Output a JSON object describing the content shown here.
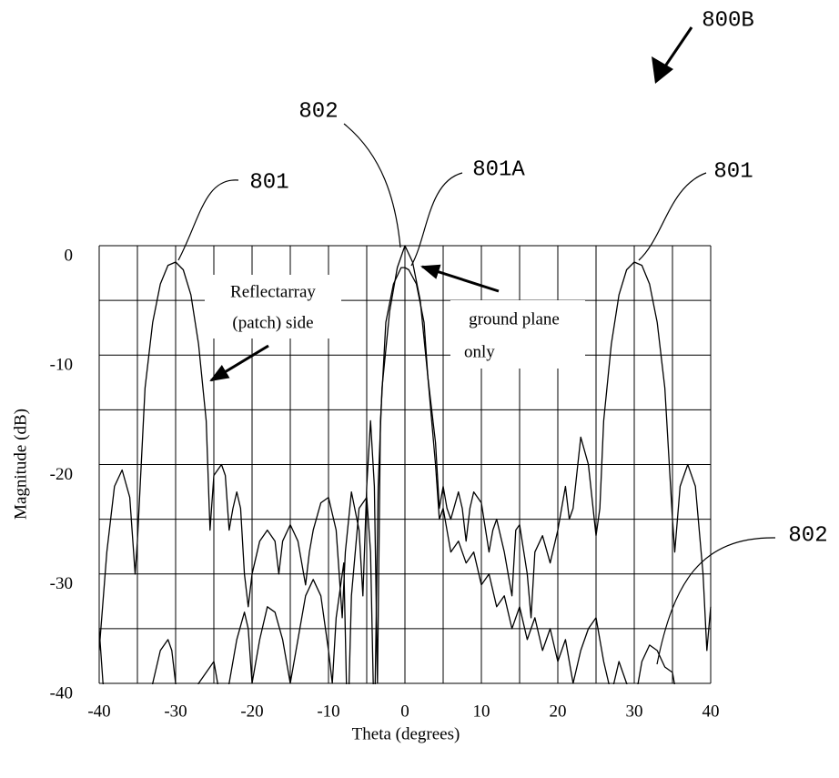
{
  "chart_data": {
    "type": "line",
    "xlabel": "Theta (degrees)",
    "ylabel": "Magnitude (dB)",
    "xlim": [
      -40,
      40
    ],
    "ylim": [
      -40,
      0
    ],
    "xticks": [
      -40,
      -30,
      -20,
      -10,
      0,
      10,
      20,
      30,
      40
    ],
    "yticks": [
      0,
      -10,
      -20,
      -30,
      -40
    ],
    "xminor": [
      -35,
      -25,
      -15,
      -5,
      5,
      15,
      25,
      35
    ],
    "yminor": [
      -5,
      -15,
      -25,
      -35
    ],
    "grid": true,
    "annotations": [
      "800B",
      "802",
      "801",
      "801A",
      "801",
      "802",
      "Reflectarray",
      "(patch) side",
      "ground plane",
      "only"
    ],
    "series": [
      {
        "color": "#000000",
        "x": [
          -40,
          -39,
          -38,
          -37,
          -36,
          -35.3,
          -35,
          -34,
          -33,
          -32,
          -31,
          -30,
          -29,
          -28,
          -27,
          -26,
          -25.5,
          -25,
          -24,
          -23.5,
          -23,
          -22.5,
          -22,
          -21.5,
          -21,
          -20.5,
          -20,
          -19,
          -18,
          -17,
          -16.5,
          -16,
          -15,
          -14,
          -13,
          -12.5,
          -12,
          -11,
          -10,
          -9,
          -8.2,
          -7.8,
          -7,
          -6,
          -5.5,
          -5,
          -4.5,
          -4,
          -3.6,
          -3.2,
          -2.5,
          -1.5,
          -0.5,
          0,
          0.5,
          1.5,
          2.5,
          3,
          3.5,
          4,
          4.5,
          5,
          5.5,
          6,
          7,
          7.5,
          8,
          8.5,
          9,
          10,
          11,
          11.5,
          12,
          13,
          14,
          14.5,
          15,
          16,
          16.5,
          17,
          18,
          19,
          20,
          21,
          21.5,
          22,
          23,
          24,
          25,
          25.5,
          26,
          27,
          28,
          29,
          30,
          31,
          32,
          33,
          34,
          35,
          35.3,
          36,
          37,
          38,
          39,
          39.5,
          40
        ],
        "values": [
          -37,
          -28,
          -22,
          -20.5,
          -23,
          -30,
          -27,
          -13,
          -7,
          -3.5,
          -1.8,
          -1.5,
          -2.2,
          -4.5,
          -9,
          -16,
          -26,
          -21,
          -20,
          -21,
          -26,
          -24,
          -22.5,
          -24,
          -30,
          -33,
          -30,
          -27,
          -26,
          -27,
          -30,
          -27,
          -25.5,
          -27,
          -31,
          -28,
          -26,
          -23.5,
          -23,
          -26,
          -34,
          -28,
          -22.5,
          -26,
          -32,
          -22,
          -16,
          -22,
          -40,
          -16,
          -7,
          -3.5,
          -2,
          -2,
          -2.2,
          -3.5,
          -7,
          -12,
          -15,
          -18,
          -24,
          -22,
          -24,
          -25,
          -22.5,
          -24,
          -27,
          -24,
          -22.5,
          -23.5,
          -28,
          -26,
          -25,
          -28,
          -32,
          -26,
          -25.5,
          -30,
          -34,
          -28,
          -26.5,
          -29,
          -26,
          -22,
          -25,
          -24,
          -17.5,
          -20,
          -26.5,
          -24,
          -16,
          -9,
          -4.5,
          -2.2,
          -1.5,
          -1.8,
          -3.5,
          -7,
          -13,
          -25,
          -28,
          -22,
          -20,
          -22,
          -30,
          -37,
          -33
        ]
      },
      {
        "color": "#000000",
        "x": [
          -40,
          -39.5,
          -39,
          -38,
          -34,
          -33,
          -32,
          -31,
          -30.5,
          -30,
          -29,
          -28,
          -27,
          -26,
          -25,
          -24.5,
          -24,
          -23,
          -22,
          -21,
          -20.5,
          -20,
          -19,
          -18,
          -17,
          -16,
          -15,
          -14,
          -13,
          -12,
          -11,
          -10,
          -9.5,
          -9,
          -8,
          -7.5,
          -7,
          -6,
          -5,
          -4.5,
          -4,
          -3.5,
          -3,
          -2,
          -1,
          0,
          1,
          2,
          3,
          4,
          4.5,
          5,
          6,
          7,
          8,
          9,
          10,
          11,
          12,
          13,
          14,
          15,
          16,
          17,
          18,
          19,
          20,
          21,
          22,
          23,
          24,
          25,
          26,
          27,
          28,
          29,
          30,
          31,
          32,
          33,
          34,
          35,
          35.5,
          36,
          37,
          40
        ],
        "values": [
          -35,
          -40,
          -42,
          -45,
          -45,
          -40,
          -37,
          -36,
          -37,
          -40,
          -45,
          -42,
          -40,
          -39,
          -38,
          -40,
          -43,
          -40,
          -36,
          -33.5,
          -35,
          -40,
          -36,
          -33,
          -33.5,
          -36,
          -40,
          -36,
          -32,
          -30.5,
          -32,
          -37,
          -40,
          -34,
          -29,
          -45,
          -32,
          -24,
          -23,
          -28,
          -45,
          -22,
          -13,
          -6,
          -2,
          0,
          -1.5,
          -5,
          -12,
          -20,
          -25,
          -24,
          -28,
          -27,
          -29,
          -28,
          -31,
          -30,
          -33,
          -32,
          -35,
          -33,
          -36,
          -34,
          -37,
          -35,
          -38,
          -36,
          -40,
          -37,
          -35,
          -34,
          -38,
          -41,
          -38,
          -40,
          -42,
          -38,
          -36.5,
          -37,
          -38.5,
          -39,
          -41,
          -43,
          -45,
          -45
        ]
      }
    ]
  }
}
